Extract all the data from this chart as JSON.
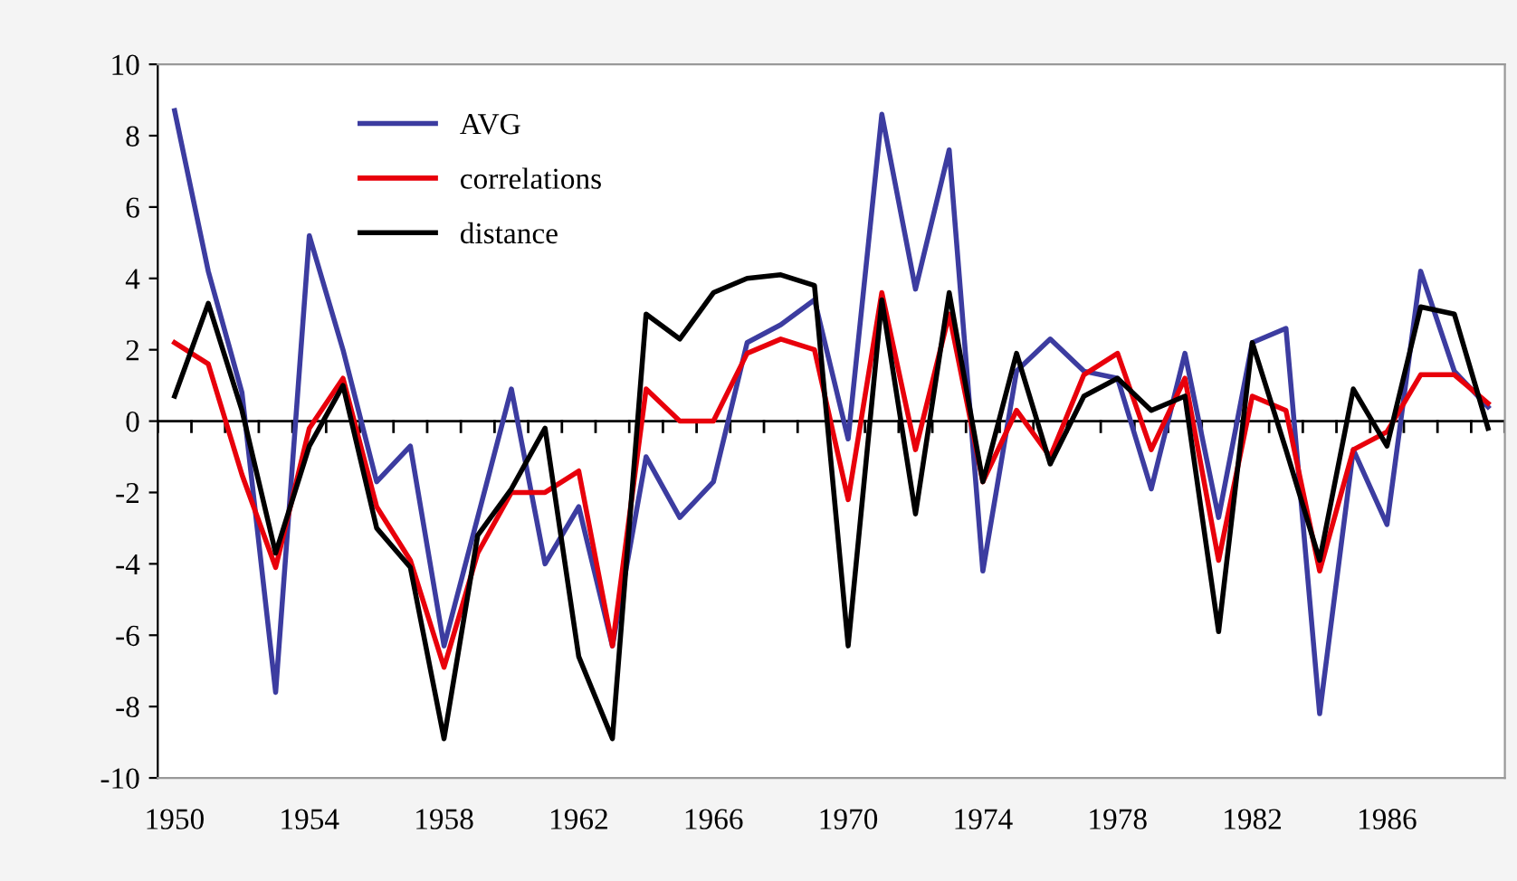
{
  "chart_data": {
    "type": "line",
    "x": [
      1950,
      1951,
      1952,
      1953,
      1954,
      1955,
      1956,
      1957,
      1958,
      1959,
      1960,
      1961,
      1962,
      1963,
      1964,
      1965,
      1966,
      1967,
      1968,
      1969,
      1970,
      1971,
      1972,
      1973,
      1974,
      1975,
      1976,
      1977,
      1978,
      1979,
      1980,
      1981,
      1982,
      1983,
      1984,
      1985,
      1986,
      1987,
      1988,
      1989
    ],
    "series": [
      {
        "name": "AVG",
        "color": "#3c3ca0",
        "values": [
          8.7,
          4.2,
          0.8,
          -7.6,
          5.2,
          2.0,
          -1.7,
          -0.7,
          -6.3,
          -2.7,
          0.9,
          -4.0,
          -2.4,
          -6.3,
          -1.0,
          -2.7,
          -1.7,
          2.2,
          2.7,
          3.4,
          -0.5,
          8.6,
          3.7,
          7.6,
          -4.2,
          1.4,
          2.3,
          1.4,
          1.2,
          -1.9,
          1.9,
          -2.7,
          2.2,
          2.6,
          -8.2,
          -0.8,
          -2.9,
          4.2,
          1.4,
          0.4
        ]
      },
      {
        "name": "correlations",
        "color": "#e8000b",
        "values": [
          2.2,
          1.6,
          -1.5,
          -4.1,
          -0.2,
          1.2,
          -2.4,
          -3.9,
          -6.9,
          -3.7,
          -2.0,
          -2.0,
          -1.4,
          -6.3,
          0.9,
          0.0,
          0.0,
          1.9,
          2.3,
          2.0,
          -2.2,
          3.6,
          -0.8,
          3.0,
          -1.7,
          0.3,
          -1.0,
          1.3,
          1.9,
          -0.8,
          1.2,
          -3.9,
          0.7,
          0.3,
          -4.2,
          -0.8,
          -0.3,
          1.3,
          1.3,
          0.5
        ]
      },
      {
        "name": "distance",
        "color": "#000000",
        "values": [
          0.7,
          3.3,
          0.3,
          -3.7,
          -0.7,
          1.0,
          -3.0,
          -4.1,
          -8.9,
          -3.2,
          -1.9,
          -0.2,
          -6.6,
          -8.9,
          3.0,
          2.3,
          3.6,
          4.0,
          4.1,
          3.8,
          -6.3,
          3.4,
          -2.6,
          3.6,
          -1.7,
          1.9,
          -1.2,
          0.7,
          1.2,
          0.3,
          0.7,
          -5.9,
          2.2,
          -0.8,
          -3.9,
          0.9,
          -0.7,
          3.2,
          3.0,
          -0.2
        ]
      }
    ],
    "xlim": [
      1949.5,
      1989.5
    ],
    "xticks": [
      1950,
      1954,
      1958,
      1962,
      1966,
      1970,
      1974,
      1978,
      1982,
      1986
    ],
    "ylim": [
      -10,
      10
    ],
    "yticks": [
      -10,
      -8,
      -6,
      -4,
      -2,
      0,
      2,
      4,
      6,
      8,
      10
    ],
    "ref_lines": [
      {
        "axis": "y",
        "value": 0,
        "color": "#000000"
      }
    ],
    "legend": "top left",
    "grid": false,
    "marker": "none",
    "line_style": "solid"
  }
}
